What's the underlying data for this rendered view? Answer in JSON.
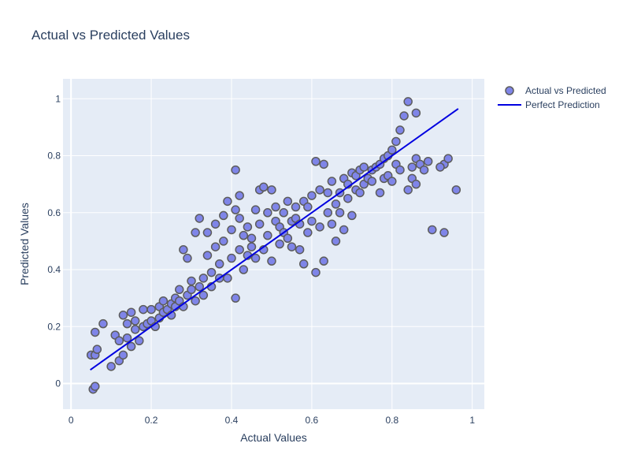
{
  "chart_data": {
    "type": "scatter",
    "title": "Actual vs Predicted Values",
    "xlabel": "Actual Values",
    "ylabel": "Predicted Values",
    "xlim": [
      -0.02,
      1.03
    ],
    "ylim": [
      -0.09,
      1.07
    ],
    "xticks": [
      0,
      0.2,
      0.4,
      0.6,
      0.8,
      1
    ],
    "yticks": [
      0,
      0.2,
      0.4,
      0.6,
      0.8,
      1
    ],
    "xtick_labels": [
      "0",
      "0.2",
      "0.4",
      "0.6",
      "0.8",
      "1"
    ],
    "ytick_labels": [
      "0",
      "0.2",
      "0.4",
      "0.6",
      "0.8",
      "1"
    ],
    "grid": true,
    "legend_position": "top-right",
    "series": [
      {
        "name": "Actual vs Predicted",
        "mode": "markers",
        "color": "#7f85e8",
        "outline": "#5c5c5c",
        "points": [
          [
            0.05,
            0.1
          ],
          [
            0.06,
            0.1
          ],
          [
            0.055,
            -0.02
          ],
          [
            0.06,
            -0.01
          ],
          [
            0.06,
            0.18
          ],
          [
            0.065,
            0.12
          ],
          [
            0.08,
            0.21
          ],
          [
            0.1,
            0.06
          ],
          [
            0.11,
            0.17
          ],
          [
            0.12,
            0.15
          ],
          [
            0.12,
            0.08
          ],
          [
            0.13,
            0.24
          ],
          [
            0.13,
            0.1
          ],
          [
            0.14,
            0.21
          ],
          [
            0.14,
            0.16
          ],
          [
            0.15,
            0.25
          ],
          [
            0.15,
            0.13
          ],
          [
            0.16,
            0.19
          ],
          [
            0.16,
            0.22
          ],
          [
            0.17,
            0.15
          ],
          [
            0.18,
            0.2
          ],
          [
            0.18,
            0.26
          ],
          [
            0.19,
            0.21
          ],
          [
            0.2,
            0.26
          ],
          [
            0.2,
            0.22
          ],
          [
            0.21,
            0.2
          ],
          [
            0.22,
            0.23
          ],
          [
            0.22,
            0.27
          ],
          [
            0.23,
            0.25
          ],
          [
            0.23,
            0.29
          ],
          [
            0.24,
            0.26
          ],
          [
            0.25,
            0.24
          ],
          [
            0.25,
            0.28
          ],
          [
            0.26,
            0.3
          ],
          [
            0.26,
            0.27
          ],
          [
            0.27,
            0.29
          ],
          [
            0.27,
            0.33
          ],
          [
            0.28,
            0.47
          ],
          [
            0.28,
            0.27
          ],
          [
            0.29,
            0.31
          ],
          [
            0.29,
            0.44
          ],
          [
            0.3,
            0.33
          ],
          [
            0.3,
            0.36
          ],
          [
            0.31,
            0.29
          ],
          [
            0.31,
            0.53
          ],
          [
            0.32,
            0.58
          ],
          [
            0.32,
            0.34
          ],
          [
            0.33,
            0.31
          ],
          [
            0.33,
            0.37
          ],
          [
            0.34,
            0.53
          ],
          [
            0.34,
            0.45
          ],
          [
            0.35,
            0.34
          ],
          [
            0.35,
            0.39
          ],
          [
            0.36,
            0.48
          ],
          [
            0.36,
            0.56
          ],
          [
            0.37,
            0.37
          ],
          [
            0.37,
            0.42
          ],
          [
            0.38,
            0.59
          ],
          [
            0.38,
            0.5
          ],
          [
            0.39,
            0.64
          ],
          [
            0.39,
            0.37
          ],
          [
            0.4,
            0.54
          ],
          [
            0.4,
            0.44
          ],
          [
            0.41,
            0.61
          ],
          [
            0.41,
            0.75
          ],
          [
            0.41,
            0.3
          ],
          [
            0.42,
            0.58
          ],
          [
            0.42,
            0.66
          ],
          [
            0.42,
            0.47
          ],
          [
            0.43,
            0.52
          ],
          [
            0.43,
            0.4
          ],
          [
            0.44,
            0.55
          ],
          [
            0.44,
            0.45
          ],
          [
            0.45,
            0.48
          ],
          [
            0.45,
            0.51
          ],
          [
            0.46,
            0.61
          ],
          [
            0.46,
            0.44
          ],
          [
            0.47,
            0.68
          ],
          [
            0.47,
            0.56
          ],
          [
            0.48,
            0.69
          ],
          [
            0.48,
            0.47
          ],
          [
            0.49,
            0.6
          ],
          [
            0.49,
            0.52
          ],
          [
            0.5,
            0.68
          ],
          [
            0.5,
            0.43
          ],
          [
            0.51,
            0.57
          ],
          [
            0.51,
            0.62
          ],
          [
            0.52,
            0.55
          ],
          [
            0.52,
            0.49
          ],
          [
            0.53,
            0.6
          ],
          [
            0.53,
            0.53
          ],
          [
            0.54,
            0.64
          ],
          [
            0.54,
            0.51
          ],
          [
            0.55,
            0.57
          ],
          [
            0.55,
            0.48
          ],
          [
            0.56,
            0.62
          ],
          [
            0.56,
            0.58
          ],
          [
            0.57,
            0.56
          ],
          [
            0.57,
            0.47
          ],
          [
            0.58,
            0.64
          ],
          [
            0.58,
            0.42
          ],
          [
            0.59,
            0.53
          ],
          [
            0.59,
            0.62
          ],
          [
            0.6,
            0.57
          ],
          [
            0.6,
            0.66
          ],
          [
            0.61,
            0.39
          ],
          [
            0.61,
            0.78
          ],
          [
            0.62,
            0.55
          ],
          [
            0.62,
            0.68
          ],
          [
            0.63,
            0.43
          ],
          [
            0.63,
            0.77
          ],
          [
            0.64,
            0.6
          ],
          [
            0.64,
            0.67
          ],
          [
            0.65,
            0.56
          ],
          [
            0.65,
            0.71
          ],
          [
            0.66,
            0.63
          ],
          [
            0.66,
            0.5
          ],
          [
            0.67,
            0.67
          ],
          [
            0.67,
            0.6
          ],
          [
            0.68,
            0.72
          ],
          [
            0.68,
            0.54
          ],
          [
            0.69,
            0.65
          ],
          [
            0.69,
            0.7
          ],
          [
            0.7,
            0.74
          ],
          [
            0.7,
            0.59
          ],
          [
            0.71,
            0.68
          ],
          [
            0.71,
            0.73
          ],
          [
            0.72,
            0.67
          ],
          [
            0.72,
            0.75
          ],
          [
            0.73,
            0.7
          ],
          [
            0.73,
            0.76
          ],
          [
            0.74,
            0.72
          ],
          [
            0.75,
            0.71
          ],
          [
            0.75,
            0.75
          ],
          [
            0.76,
            0.76
          ],
          [
            0.77,
            0.67
          ],
          [
            0.77,
            0.77
          ],
          [
            0.78,
            0.79
          ],
          [
            0.78,
            0.72
          ],
          [
            0.79,
            0.8
          ],
          [
            0.79,
            0.73
          ],
          [
            0.8,
            0.82
          ],
          [
            0.8,
            0.71
          ],
          [
            0.81,
            0.85
          ],
          [
            0.81,
            0.77
          ],
          [
            0.82,
            0.89
          ],
          [
            0.82,
            0.75
          ],
          [
            0.83,
            0.94
          ],
          [
            0.84,
            0.68
          ],
          [
            0.84,
            0.99
          ],
          [
            0.85,
            0.72
          ],
          [
            0.85,
            0.76
          ],
          [
            0.86,
            0.95
          ],
          [
            0.86,
            0.7
          ],
          [
            0.86,
            0.79
          ],
          [
            0.87,
            0.77
          ],
          [
            0.88,
            0.75
          ],
          [
            0.89,
            0.78
          ],
          [
            0.9,
            0.54
          ],
          [
            0.93,
            0.77
          ],
          [
            0.93,
            0.53
          ],
          [
            0.94,
            0.79
          ],
          [
            0.96,
            0.68
          ],
          [
            0.92,
            0.76
          ]
        ]
      },
      {
        "name": "Perfect Prediction",
        "mode": "lines",
        "color": "#0000e0",
        "x": [
          0.048,
          0.965
        ],
        "y": [
          0.048,
          0.965
        ]
      }
    ]
  }
}
